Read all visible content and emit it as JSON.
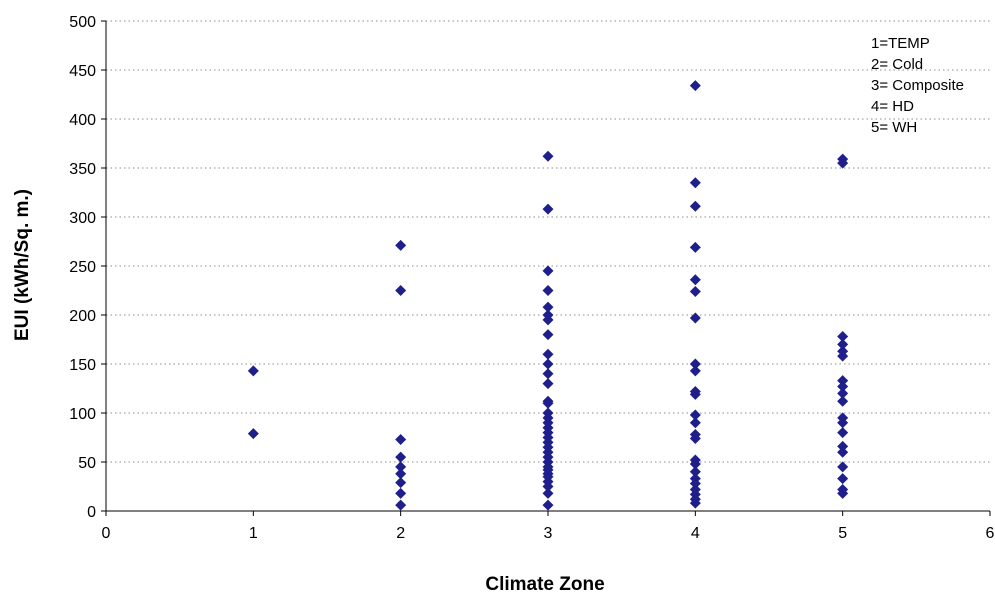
{
  "chart_data": {
    "type": "scatter",
    "xlabel": "Climate Zone",
    "ylabel": "EUI (kWh/Sq. m.)",
    "xlim": [
      0,
      6
    ],
    "ylim": [
      0,
      500
    ],
    "xticks": [
      0,
      1,
      2,
      3,
      4,
      5,
      6
    ],
    "yticks": [
      0,
      50,
      100,
      150,
      200,
      250,
      300,
      350,
      400,
      450,
      500
    ],
    "grid": "horizontal dotted",
    "legend_placement": "top-right",
    "legend_lines": [
      "1=TEMP",
      "2= Cold",
      "3= Composite",
      "4= HD",
      "5= WH"
    ],
    "marker": {
      "shape": "diamond",
      "color": "#1F1F8C"
    },
    "series": [
      {
        "points": [
          {
            "x": 1,
            "y": 143
          },
          {
            "x": 1,
            "y": 79
          },
          {
            "x": 2,
            "y": 271
          },
          {
            "x": 2,
            "y": 225
          },
          {
            "x": 2,
            "y": 73
          },
          {
            "x": 2,
            "y": 55
          },
          {
            "x": 2,
            "y": 45
          },
          {
            "x": 2,
            "y": 38
          },
          {
            "x": 2,
            "y": 29
          },
          {
            "x": 2,
            "y": 18
          },
          {
            "x": 2,
            "y": 6
          },
          {
            "x": 3,
            "y": 362
          },
          {
            "x": 3,
            "y": 308
          },
          {
            "x": 3,
            "y": 245
          },
          {
            "x": 3,
            "y": 225
          },
          {
            "x": 3,
            "y": 208
          },
          {
            "x": 3,
            "y": 200
          },
          {
            "x": 3,
            "y": 195
          },
          {
            "x": 3,
            "y": 180
          },
          {
            "x": 3,
            "y": 160
          },
          {
            "x": 3,
            "y": 150
          },
          {
            "x": 3,
            "y": 140
          },
          {
            "x": 3,
            "y": 130
          },
          {
            "x": 3,
            "y": 112
          },
          {
            "x": 3,
            "y": 110
          },
          {
            "x": 3,
            "y": 100
          },
          {
            "x": 3,
            "y": 95
          },
          {
            "x": 3,
            "y": 90
          },
          {
            "x": 3,
            "y": 85
          },
          {
            "x": 3,
            "y": 80
          },
          {
            "x": 3,
            "y": 75
          },
          {
            "x": 3,
            "y": 70
          },
          {
            "x": 3,
            "y": 65
          },
          {
            "x": 3,
            "y": 60
          },
          {
            "x": 3,
            "y": 55
          },
          {
            "x": 3,
            "y": 50
          },
          {
            "x": 3,
            "y": 45
          },
          {
            "x": 3,
            "y": 42
          },
          {
            "x": 3,
            "y": 38
          },
          {
            "x": 3,
            "y": 35
          },
          {
            "x": 3,
            "y": 30
          },
          {
            "x": 3,
            "y": 25
          },
          {
            "x": 3,
            "y": 18
          },
          {
            "x": 3,
            "y": 6
          },
          {
            "x": 4,
            "y": 434
          },
          {
            "x": 4,
            "y": 335
          },
          {
            "x": 4,
            "y": 311
          },
          {
            "x": 4,
            "y": 269
          },
          {
            "x": 4,
            "y": 236
          },
          {
            "x": 4,
            "y": 224
          },
          {
            "x": 4,
            "y": 197
          },
          {
            "x": 4,
            "y": 150
          },
          {
            "x": 4,
            "y": 143
          },
          {
            "x": 4,
            "y": 122
          },
          {
            "x": 4,
            "y": 119
          },
          {
            "x": 4,
            "y": 98
          },
          {
            "x": 4,
            "y": 90
          },
          {
            "x": 4,
            "y": 78
          },
          {
            "x": 4,
            "y": 74
          },
          {
            "x": 4,
            "y": 52
          },
          {
            "x": 4,
            "y": 48
          },
          {
            "x": 4,
            "y": 40
          },
          {
            "x": 4,
            "y": 33
          },
          {
            "x": 4,
            "y": 28
          },
          {
            "x": 4,
            "y": 22
          },
          {
            "x": 4,
            "y": 17
          },
          {
            "x": 4,
            "y": 12
          },
          {
            "x": 4,
            "y": 8
          },
          {
            "x": 5,
            "y": 359
          },
          {
            "x": 5,
            "y": 355
          },
          {
            "x": 5,
            "y": 178
          },
          {
            "x": 5,
            "y": 170
          },
          {
            "x": 5,
            "y": 163
          },
          {
            "x": 5,
            "y": 158
          },
          {
            "x": 5,
            "y": 133
          },
          {
            "x": 5,
            "y": 127
          },
          {
            "x": 5,
            "y": 120
          },
          {
            "x": 5,
            "y": 112
          },
          {
            "x": 5,
            "y": 95
          },
          {
            "x": 5,
            "y": 90
          },
          {
            "x": 5,
            "y": 80
          },
          {
            "x": 5,
            "y": 66
          },
          {
            "x": 5,
            "y": 60
          },
          {
            "x": 5,
            "y": 45
          },
          {
            "x": 5,
            "y": 33
          },
          {
            "x": 5,
            "y": 22
          },
          {
            "x": 5,
            "y": 18
          }
        ]
      }
    ]
  }
}
